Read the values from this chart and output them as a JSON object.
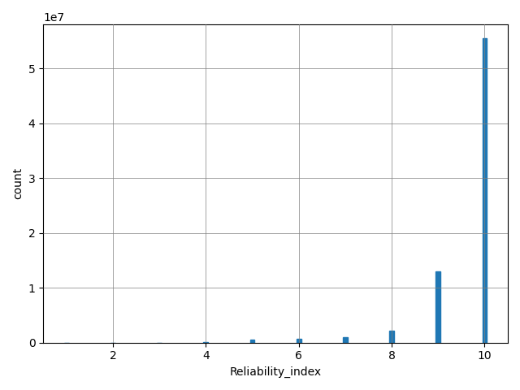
{
  "xlabel": "Reliability_index",
  "ylabel": "count",
  "bar_color": "#1f77b4",
  "xlim": [
    0.5,
    10.5
  ],
  "ylim": [
    0,
    58000000.0
  ],
  "xticks": [
    2,
    4,
    6,
    8,
    10
  ],
  "yticks": [
    0,
    10000000.0,
    20000000.0,
    30000000.0,
    40000000.0,
    50000000.0
  ],
  "grid": true,
  "counts": [
    0,
    0,
    0,
    40000,
    500000,
    750000,
    1000000,
    2200000,
    13000000,
    55500000
  ],
  "bin_centers": [
    1,
    2,
    3,
    4,
    5,
    6,
    7,
    8,
    9,
    10
  ],
  "bar_width": 0.1,
  "figsize": [
    6.4,
    4.8
  ],
  "dpi": 100
}
